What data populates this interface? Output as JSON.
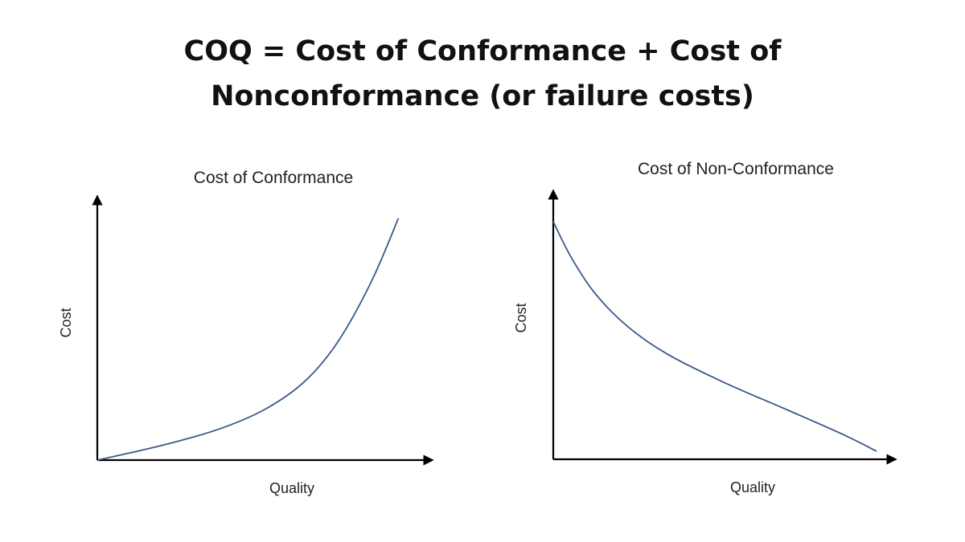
{
  "title_line1": "COQ = Cost of Conformance + Cost of",
  "title_line2": "Nonconformance (or failure costs)",
  "colors": {
    "curve": "#3b5a8a",
    "axis": "#000000",
    "text": "#111111"
  },
  "chart_data": [
    {
      "type": "line",
      "title": "Cost of Conformance",
      "xlabel": "Quality",
      "ylabel": "Cost",
      "axis_ticks": "none",
      "grid": false,
      "xlim": [
        0,
        100
      ],
      "ylim": [
        0,
        100
      ],
      "x": [
        0,
        19,
        36,
        50,
        62,
        72,
        82,
        90
      ],
      "values": [
        0,
        5.5,
        11.6,
        19.2,
        29.9,
        45.1,
        68,
        91.8
      ]
    },
    {
      "type": "line",
      "title": "Cost of Non-Conformance",
      "xlabel": "Quality",
      "ylabel": "Cost",
      "axis_ticks": "none",
      "grid": false,
      "xlim": [
        0,
        100
      ],
      "ylim": [
        0,
        100
      ],
      "x": [
        0,
        5.2,
        12.2,
        21.6,
        33.4,
        49.9,
        68.7,
        85.2,
        94.6
      ],
      "values": [
        88.6,
        75.4,
        61.9,
        49.7,
        39.2,
        28.7,
        18.3,
        9,
        3
      ]
    }
  ]
}
